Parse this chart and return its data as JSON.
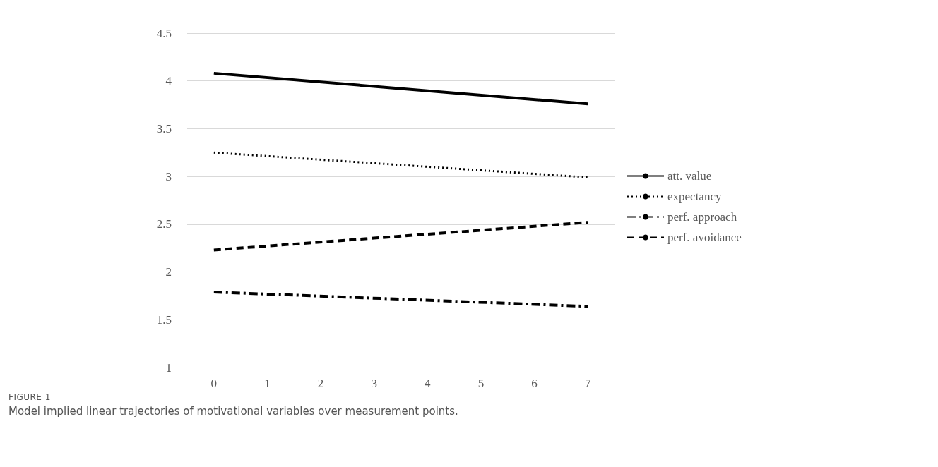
{
  "chart_data": {
    "type": "line",
    "categories": [
      "0",
      "1",
      "2",
      "3",
      "4",
      "5",
      "6",
      "7"
    ],
    "series": [
      {
        "name": "att. value",
        "color": "#000000",
        "line_style": "solid",
        "x": [
          "0",
          "7"
        ],
        "values": [
          4.08,
          3.76
        ]
      },
      {
        "name": "expectancy",
        "color": "#000000",
        "line_style": "dotted",
        "x": [
          "0",
          "7"
        ],
        "values": [
          3.25,
          2.99
        ]
      },
      {
        "name": "perf. approach",
        "color": "#000000",
        "line_style": "dashdot",
        "x": [
          "0",
          "7"
        ],
        "values": [
          1.79,
          1.64
        ]
      },
      {
        "name": "perf. avoidance",
        "color": "#000000",
        "line_style": "dashed",
        "x": [
          "0",
          "7"
        ],
        "values": [
          2.23,
          2.52
        ]
      }
    ],
    "ylim": [
      1,
      4.5
    ],
    "yticks": [
      1,
      1.5,
      2,
      2.5,
      3,
      3.5,
      4,
      4.5
    ],
    "grid": "y",
    "legend": "right",
    "marker": "none",
    "annotations": [
      "FIGURE 1",
      "Model implied linear trajectories of motivational variables over measurement points."
    ]
  }
}
